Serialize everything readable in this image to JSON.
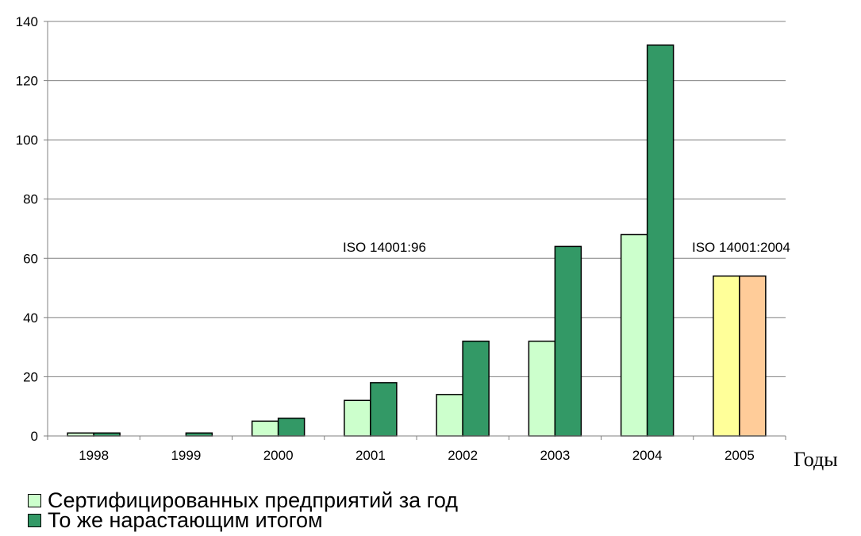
{
  "chart_data": {
    "type": "bar",
    "categories": [
      "1998",
      "1999",
      "2000",
      "2001",
      "2002",
      "2003",
      "2004",
      "2005"
    ],
    "series": [
      {
        "name": "Сертифицированных предприятий за год",
        "values": [
          1,
          0,
          5,
          12,
          14,
          32,
          68,
          54
        ]
      },
      {
        "name": "То же нарастающим итогом",
        "values": [
          1,
          1,
          6,
          18,
          32,
          64,
          132,
          54
        ]
      }
    ],
    "colors": {
      "annual": "#ccffcc",
      "cumulative": "#339966",
      "annual_2005": "#ffff99",
      "cumulative_2005": "#ffcc99"
    },
    "title": "",
    "xlabel": "Годы",
    "ylabel": "",
    "ylim": [
      0,
      140
    ],
    "yticks": [
      0,
      20,
      40,
      60,
      80,
      100,
      120,
      140
    ],
    "grid": true,
    "legend": "bottom-left",
    "annotations": [
      {
        "text": "ISO 14001:96",
        "near": "2001-2002"
      },
      {
        "text": "ISO 14001:2004",
        "near": "2005"
      }
    ]
  }
}
